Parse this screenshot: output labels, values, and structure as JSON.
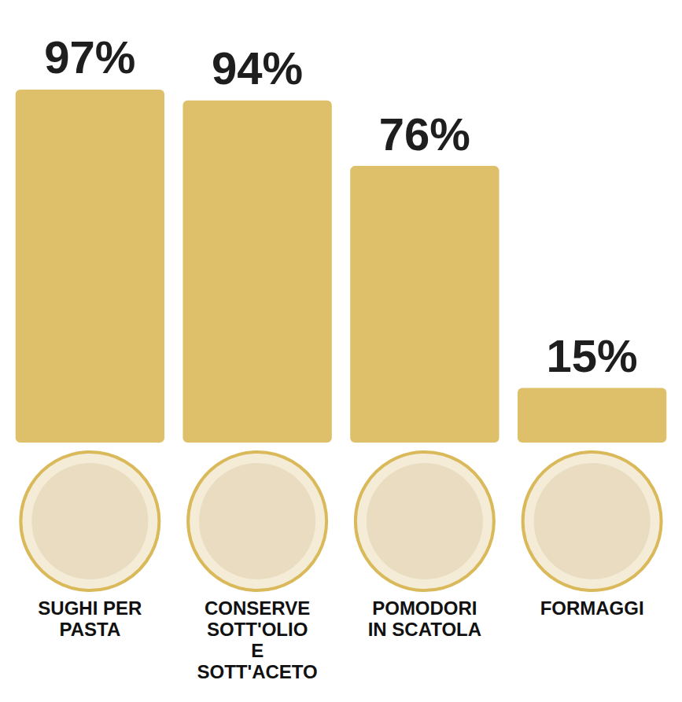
{
  "chart_data": {
    "type": "bar",
    "categories": [
      "SUGHI PER PASTA",
      "CONSERVE SOTT'OLIO E SOTT'ACETO",
      "POMODORI IN SCATOLA",
      "FORMAGGI"
    ],
    "values": [
      97,
      94,
      76,
      15
    ],
    "value_labels": [
      "97%",
      "94%",
      "76%",
      "15%"
    ],
    "color": "#dfc06a",
    "ylim": [
      0,
      100
    ],
    "grid": false,
    "data_labels": true,
    "tick_labels": "x"
  }
}
